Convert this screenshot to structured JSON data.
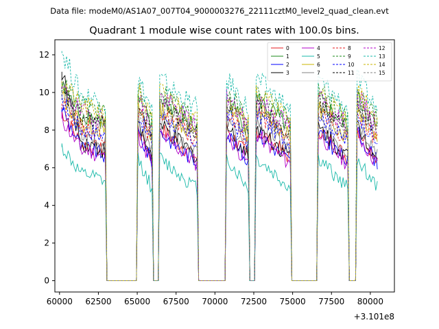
{
  "figure": {
    "suptitle": "Data file: modeM0/AS1A07_007T04_9000003276_22111cztM0_level2_quad_clean.evt"
  },
  "chart_data": {
    "type": "line",
    "title": "Quadrant 1 module wise count rates with 100.0s bins.",
    "xlabel": "",
    "ylabel": "",
    "x_offset_label": "+3.101e8",
    "xlim": [
      59700,
      81550
    ],
    "ylim": [
      -0.6,
      12.8
    ],
    "x_ticks": [
      60000,
      62500,
      65000,
      67500,
      70000,
      72500,
      75000,
      77500,
      80000
    ],
    "x_tick_labels": [
      "60000",
      "62500",
      "65000",
      "67500",
      "70000",
      "72500",
      "75000",
      "77500",
      "80000"
    ],
    "y_ticks": [
      0,
      2,
      4,
      6,
      8,
      10,
      12
    ],
    "y_tick_labels": [
      "0",
      "2",
      "4",
      "6",
      "8",
      "10",
      "12"
    ],
    "grid": false,
    "legend_position": "top-right",
    "legend_columns": 4,
    "bin_seconds": 100,
    "on_segments": [
      {
        "start": 60150,
        "end": 62950
      },
      {
        "start": 65050,
        "end": 65950
      },
      {
        "start": 66450,
        "end": 68850
      },
      {
        "start": 70750,
        "end": 72150
      },
      {
        "start": 72650,
        "end": 74850
      },
      {
        "start": 76650,
        "end": 78550
      },
      {
        "start": 79150,
        "end": 80450
      }
    ],
    "off_value": 0,
    "series": [
      {
        "name": "0",
        "color": "#e41a1c",
        "dashed": false,
        "mean": 7.2,
        "start_value": 9.0,
        "wiggle": 0.45
      },
      {
        "name": "1",
        "color": "#1a8a1a",
        "dashed": false,
        "mean": 8.8,
        "start_value": 10.3,
        "wiggle": 0.5
      },
      {
        "name": "2",
        "color": "#0000ff",
        "dashed": false,
        "mean": 7.0,
        "start_value": 9.2,
        "wiggle": 0.45
      },
      {
        "name": "3",
        "color": "#000000",
        "dashed": false,
        "mean": 7.3,
        "start_value": 11.1,
        "wiggle": 0.5
      },
      {
        "name": "4",
        "color": "#b000c8",
        "dashed": false,
        "mean": 6.9,
        "start_value": 8.6,
        "wiggle": 0.45
      },
      {
        "name": "5",
        "color": "#17b8a8",
        "dashed": false,
        "mean": 5.6,
        "start_value": 7.1,
        "wiggle": 0.4
      },
      {
        "name": "6",
        "color": "#c8b400",
        "dashed": false,
        "mean": 8.3,
        "start_value": 9.8,
        "wiggle": 0.5
      },
      {
        "name": "7",
        "color": "#808080",
        "dashed": false,
        "mean": 7.6,
        "start_value": 10.6,
        "wiggle": 0.5
      },
      {
        "name": "8",
        "color": "#e41a1c",
        "dashed": true,
        "mean": 8.1,
        "start_value": 9.4,
        "wiggle": 0.5
      },
      {
        "name": "9",
        "color": "#1a8a1a",
        "dashed": true,
        "mean": 9.3,
        "start_value": 10.5,
        "wiggle": 0.5
      },
      {
        "name": "10",
        "color": "#0000ff",
        "dashed": true,
        "mean": 8.0,
        "start_value": 9.6,
        "wiggle": 0.5
      },
      {
        "name": "11",
        "color": "#000000",
        "dashed": true,
        "mean": 8.6,
        "start_value": 10.0,
        "wiggle": 0.5
      },
      {
        "name": "12",
        "color": "#b000c8",
        "dashed": true,
        "mean": 8.9,
        "start_value": 10.2,
        "wiggle": 0.55
      },
      {
        "name": "13",
        "color": "#17b8a8",
        "dashed": true,
        "mean": 9.8,
        "start_value": 12.2,
        "wiggle": 0.6
      },
      {
        "name": "14",
        "color": "#c8b400",
        "dashed": true,
        "mean": 9.2,
        "start_value": 10.6,
        "wiggle": 0.55
      },
      {
        "name": "15",
        "color": "#808080",
        "dashed": true,
        "mean": 8.5,
        "start_value": 10.1,
        "wiggle": 0.5
      }
    ]
  }
}
